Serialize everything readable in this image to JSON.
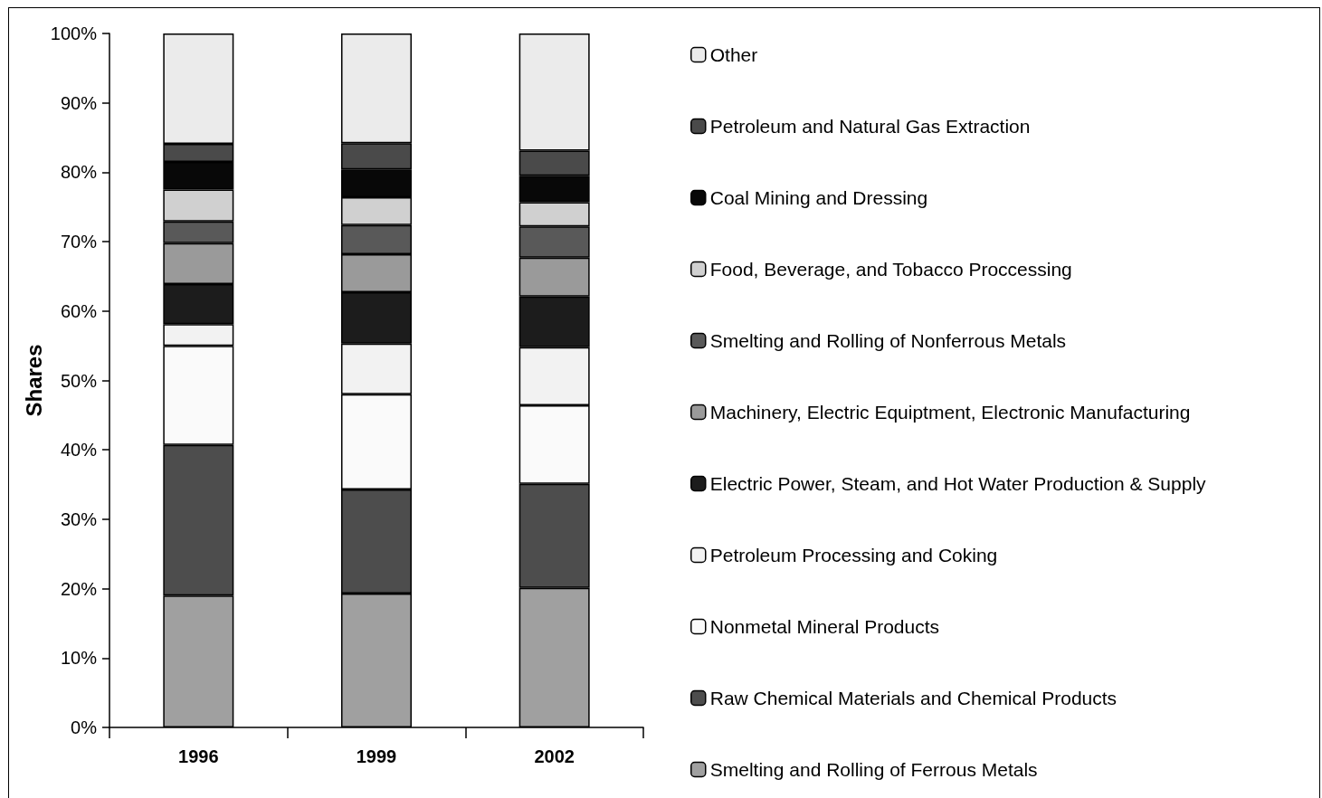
{
  "chart_data": {
    "type": "bar",
    "stacked": true,
    "ylabel": "Shares",
    "categories": [
      "1996",
      "1999",
      "2002"
    ],
    "ylim": [
      0,
      100
    ],
    "yticks": [
      {
        "value": 0,
        "label": "0%"
      },
      {
        "value": 10,
        "label": "10%"
      },
      {
        "value": 20,
        "label": "20%"
      },
      {
        "value": 30,
        "label": "30%"
      },
      {
        "value": 40,
        "label": "40%"
      },
      {
        "value": 50,
        "label": "50%"
      },
      {
        "value": 60,
        "label": "60%"
      },
      {
        "value": 70,
        "label": "70%"
      },
      {
        "value": 80,
        "label": "80%"
      },
      {
        "value": 90,
        "label": "90%"
      },
      {
        "value": 100,
        "label": "100%"
      }
    ],
    "grid": false,
    "legend": "right",
    "series": [
      {
        "name": "Smelting and Rolling of Ferrous Metals",
        "color": "#a0a0a0",
        "values": [
          19.0,
          19.3,
          20.1
        ]
      },
      {
        "name": "Raw Chemical Materials and Chemical Products",
        "color": "#4d4d4d",
        "values": [
          21.7,
          15.0,
          15.0
        ]
      },
      {
        "name": "Nonmetal Mineral Products",
        "color": "#fafafa",
        "values": [
          14.3,
          13.7,
          11.3
        ]
      },
      {
        "name": "Petroleum Processing and Coking",
        "color": "#f2f2f2",
        "values": [
          3.1,
          7.3,
          8.4
        ]
      },
      {
        "name": "Electric Power, Steam, and Hot Water Production & Supply",
        "color": "#1c1c1c",
        "values": [
          5.8,
          7.4,
          7.3
        ]
      },
      {
        "name": "Machinery, Electric Equiptment, Electronic Manufacturing",
        "color": "#9a9a9a",
        "values": [
          5.9,
          5.5,
          5.6
        ]
      },
      {
        "name": "Smelting and Rolling of Nonferrous Metals",
        "color": "#595959",
        "values": [
          3.1,
          4.2,
          4.5
        ]
      },
      {
        "name": "Food, Beverage, and Tobacco Proccessing",
        "color": "#d0d0d0",
        "values": [
          4.6,
          4.0,
          3.5
        ]
      },
      {
        "name": "Coal Mining and Dressing",
        "color": "#080808",
        "values": [
          4.0,
          4.0,
          3.8
        ]
      },
      {
        "name": "Petroleum and Natural Gas Extraction",
        "color": "#4a4a4a",
        "values": [
          2.6,
          3.8,
          3.6
        ]
      },
      {
        "name": "Other",
        "color": "#ebebeb",
        "values": [
          15.9,
          15.8,
          16.9
        ]
      }
    ]
  }
}
